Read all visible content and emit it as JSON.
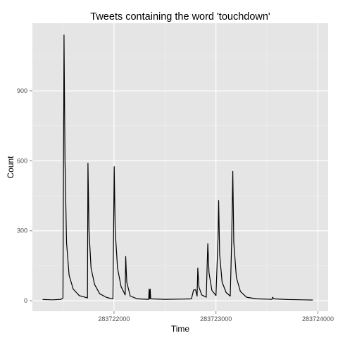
{
  "chart_data": {
    "type": "line",
    "title": "Tweets containing the word 'touchdown'",
    "xlabel": "Time",
    "ylabel": "Count",
    "xlim": [
      283721200,
      283724100
    ],
    "ylim": [
      -45,
      1190
    ],
    "x_ticks": [
      283722000,
      283723000,
      283724000
    ],
    "y_ticks": [
      0,
      300,
      600,
      900
    ],
    "grid": true,
    "legend": "none",
    "colors": {
      "panel_background": "#e5e5e5",
      "grid_major": "#ffffff",
      "grid_minor": "#f2f2f2",
      "line": "#000000",
      "tick_label": "#4d4d4d"
    },
    "series": [
      {
        "values": [
          [
            283721300,
            5
          ],
          [
            283721400,
            4
          ],
          [
            283721480,
            6
          ],
          [
            283721500,
            12
          ],
          [
            283721510,
            1140
          ],
          [
            283721520,
            600
          ],
          [
            283721535,
            250
          ],
          [
            283721560,
            110
          ],
          [
            283721600,
            50
          ],
          [
            283721660,
            22
          ],
          [
            283721740,
            12
          ],
          [
            283721745,
            590
          ],
          [
            283721755,
            300
          ],
          [
            283721775,
            140
          ],
          [
            283721810,
            70
          ],
          [
            283721860,
            30
          ],
          [
            283721930,
            14
          ],
          [
            283721990,
            8
          ],
          [
            283722002,
            575
          ],
          [
            283722012,
            300
          ],
          [
            283722035,
            140
          ],
          [
            283722070,
            60
          ],
          [
            283722110,
            25
          ],
          [
            283722115,
            190
          ],
          [
            283722125,
            80
          ],
          [
            283722160,
            20
          ],
          [
            283722230,
            8
          ],
          [
            283722340,
            6
          ],
          [
            283722345,
            50
          ],
          [
            283722350,
            8
          ],
          [
            283722355,
            50
          ],
          [
            283722360,
            8
          ],
          [
            283722500,
            6
          ],
          [
            283722650,
            7
          ],
          [
            283722760,
            8
          ],
          [
            283722780,
            45
          ],
          [
            283722800,
            48
          ],
          [
            283722815,
            20
          ],
          [
            283722822,
            140
          ],
          [
            283722832,
            60
          ],
          [
            283722860,
            25
          ],
          [
            283722905,
            15
          ],
          [
            283722920,
            245
          ],
          [
            283722932,
            120
          ],
          [
            283722960,
            45
          ],
          [
            283723000,
            22
          ],
          [
            283723020,
            265
          ],
          [
            283723026,
            430
          ],
          [
            283723036,
            200
          ],
          [
            283723060,
            80
          ],
          [
            283723100,
            35
          ],
          [
            283723140,
            20
          ],
          [
            283723155,
            270
          ],
          [
            283723165,
            555
          ],
          [
            283723175,
            250
          ],
          [
            283723200,
            100
          ],
          [
            283723240,
            40
          ],
          [
            283723300,
            15
          ],
          [
            283723400,
            8
          ],
          [
            283723550,
            6
          ],
          [
            283723555,
            15
          ],
          [
            283723570,
            8
          ],
          [
            283723700,
            5
          ],
          [
            283723850,
            4
          ],
          [
            283723950,
            3
          ]
        ]
      }
    ]
  }
}
